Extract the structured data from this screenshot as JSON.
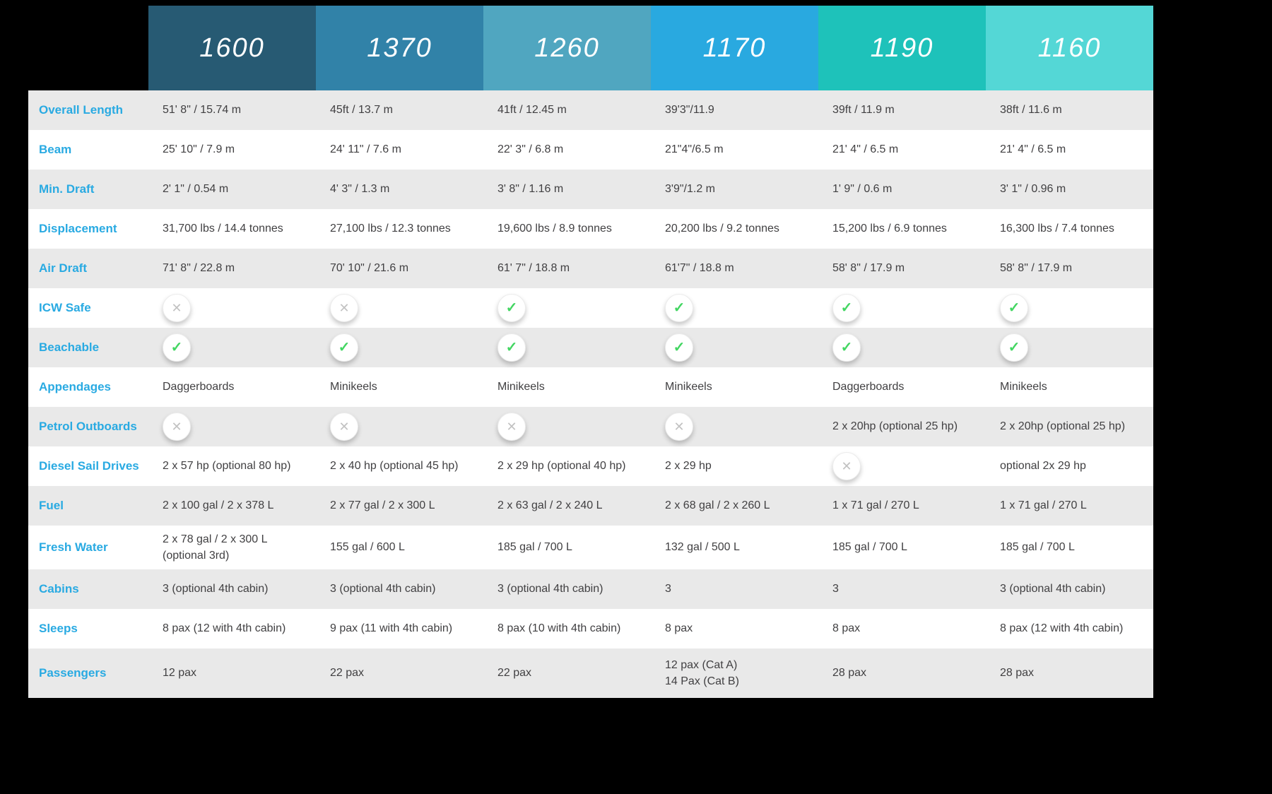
{
  "page": {
    "background": "#000000"
  },
  "style": {
    "label_color": "#29aae2",
    "value_color": "#414042",
    "row_color": "#ffffff",
    "row_alt_color": "#e9e9e9"
  },
  "icons": {
    "yes_glyph": "✓",
    "no_glyph": "✕",
    "yes_color": "#43d662",
    "no_color": "#c2c2c2"
  },
  "table": {
    "models": [
      {
        "label": "1600",
        "color": "#275a73"
      },
      {
        "label": "1370",
        "color": "#3182a8"
      },
      {
        "label": "1260",
        "color": "#50a6c0"
      },
      {
        "label": "1170",
        "color": "#29a9e0"
      },
      {
        "label": "1190",
        "color": "#1ec2ba"
      },
      {
        "label": "1160",
        "color": "#54d7d6"
      }
    ],
    "rows": [
      {
        "label": "Overall Length",
        "cells": [
          {
            "text": "51' 8\" / 15.74 m"
          },
          {
            "text": "45ft / 13.7 m"
          },
          {
            "text": "41ft / 12.45 m"
          },
          {
            "text": "39'3\"/11.9"
          },
          {
            "text": "39ft / 11.9 m"
          },
          {
            "text": "38ft / 11.6 m"
          }
        ]
      },
      {
        "label": "Beam",
        "cells": [
          {
            "text": "25' 10\" / 7.9 m"
          },
          {
            "text": "24' 11\" / 7.6 m"
          },
          {
            "text": "22' 3\" / 6.8 m"
          },
          {
            "text": "21\"4\"/6.5 m"
          },
          {
            "text": "21' 4\" / 6.5 m"
          },
          {
            "text": "21' 4\" / 6.5 m"
          }
        ]
      },
      {
        "label": "Min. Draft",
        "cells": [
          {
            "text": "2' 1\" / 0.54 m"
          },
          {
            "text": "4' 3\" / 1.3 m"
          },
          {
            "text": "3' 8\" / 1.16 m"
          },
          {
            "text": "3'9\"/1.2 m"
          },
          {
            "text": "1' 9\" / 0.6 m"
          },
          {
            "text": "3' 1\" / 0.96 m"
          }
        ]
      },
      {
        "label": "Displacement",
        "cells": [
          {
            "text": "31,700 lbs / 14.4 tonnes"
          },
          {
            "text": "27,100 lbs / 12.3 tonnes"
          },
          {
            "text": "19,600 lbs / 8.9 tonnes"
          },
          {
            "text": "20,200 lbs / 9.2 tonnes"
          },
          {
            "text": "15,200 lbs / 6.9 tonnes"
          },
          {
            "text": "16,300 lbs / 7.4 tonnes"
          }
        ]
      },
      {
        "label": "Air Draft",
        "cells": [
          {
            "text": "71' 8\" / 22.8 m"
          },
          {
            "text": "70' 10\" / 21.6 m"
          },
          {
            "text": "61' 7\" / 18.8 m"
          },
          {
            "text": "61'7\" / 18.8 m"
          },
          {
            "text": "58' 8\" / 17.9 m"
          },
          {
            "text": "58' 8\" / 17.9 m"
          }
        ]
      },
      {
        "label": "ICW Safe",
        "cells": [
          {
            "icon": "no"
          },
          {
            "icon": "no"
          },
          {
            "icon": "yes"
          },
          {
            "icon": "yes"
          },
          {
            "icon": "yes"
          },
          {
            "icon": "yes"
          }
        ]
      },
      {
        "label": "Beachable",
        "cells": [
          {
            "icon": "yes"
          },
          {
            "icon": "yes"
          },
          {
            "icon": "yes"
          },
          {
            "icon": "yes"
          },
          {
            "icon": "yes"
          },
          {
            "icon": "yes"
          }
        ]
      },
      {
        "label": "Appendages",
        "cells": [
          {
            "text": "Daggerboards"
          },
          {
            "text": "Minikeels"
          },
          {
            "text": "Minikeels"
          },
          {
            "text": "Minikeels"
          },
          {
            "text": "Daggerboards"
          },
          {
            "text": "Minikeels"
          }
        ]
      },
      {
        "label": "Petrol Outboards",
        "cells": [
          {
            "icon": "no"
          },
          {
            "icon": "no"
          },
          {
            "icon": "no"
          },
          {
            "icon": "no"
          },
          {
            "text": "2 x 20hp (optional 25 hp)"
          },
          {
            "text": "2 x 20hp (optional 25 hp)"
          }
        ]
      },
      {
        "label": "Diesel Sail Drives",
        "cells": [
          {
            "text": "2 x 57 hp (optional 80 hp)"
          },
          {
            "text": "2 x 40 hp (optional 45 hp)"
          },
          {
            "text": "2 x 29 hp (optional 40 hp)"
          },
          {
            "text": "2 x 29 hp"
          },
          {
            "icon": "no"
          },
          {
            "text": "optional 2x 29 hp"
          }
        ]
      },
      {
        "label": "Fuel",
        "cells": [
          {
            "text": "2 x 100 gal / 2 x 378 L"
          },
          {
            "text": "2 x 77 gal / 2 x 300 L"
          },
          {
            "text": "2 x 63 gal / 2 x 240 L"
          },
          {
            "text": "2 x 68 gal / 2 x 260 L"
          },
          {
            "text": "1 x 71 gal / 270 L"
          },
          {
            "text": "1 x 71 gal / 270 L"
          }
        ]
      },
      {
        "label": "Fresh Water",
        "size": "tall",
        "cells": [
          {
            "text": "2 x 78 gal / 2 x 300 L\n(optional 3rd)"
          },
          {
            "text": "155 gal / 600 L"
          },
          {
            "text": "185 gal / 700 L"
          },
          {
            "text": "132 gal / 500 L"
          },
          {
            "text": "185 gal / 700 L"
          },
          {
            "text": "185 gal / 700 L"
          }
        ]
      },
      {
        "label": "Cabins",
        "cells": [
          {
            "text": "3 (optional 4th cabin)"
          },
          {
            "text": "3 (optional 4th cabin)"
          },
          {
            "text": "3 (optional 4th cabin)"
          },
          {
            "text": "3"
          },
          {
            "text": "3"
          },
          {
            "text": "3 (optional 4th cabin)"
          }
        ]
      },
      {
        "label": "Sleeps",
        "cells": [
          {
            "text": "8 pax (12 with 4th cabin)"
          },
          {
            "text": "9 pax (11 with 4th cabin)"
          },
          {
            "text": "8 pax (10 with 4th cabin)"
          },
          {
            "text": "8 pax"
          },
          {
            "text": "8 pax"
          },
          {
            "text": "8 pax (12 with 4th cabin)"
          }
        ]
      },
      {
        "label": "Passengers",
        "size": "xtall",
        "cells": [
          {
            "text": "12 pax"
          },
          {
            "text": "22 pax"
          },
          {
            "text": "22 pax"
          },
          {
            "text": "12 pax (Cat A)\n14 Pax (Cat B)"
          },
          {
            "text": "28 pax"
          },
          {
            "text": "28 pax"
          }
        ]
      }
    ]
  }
}
